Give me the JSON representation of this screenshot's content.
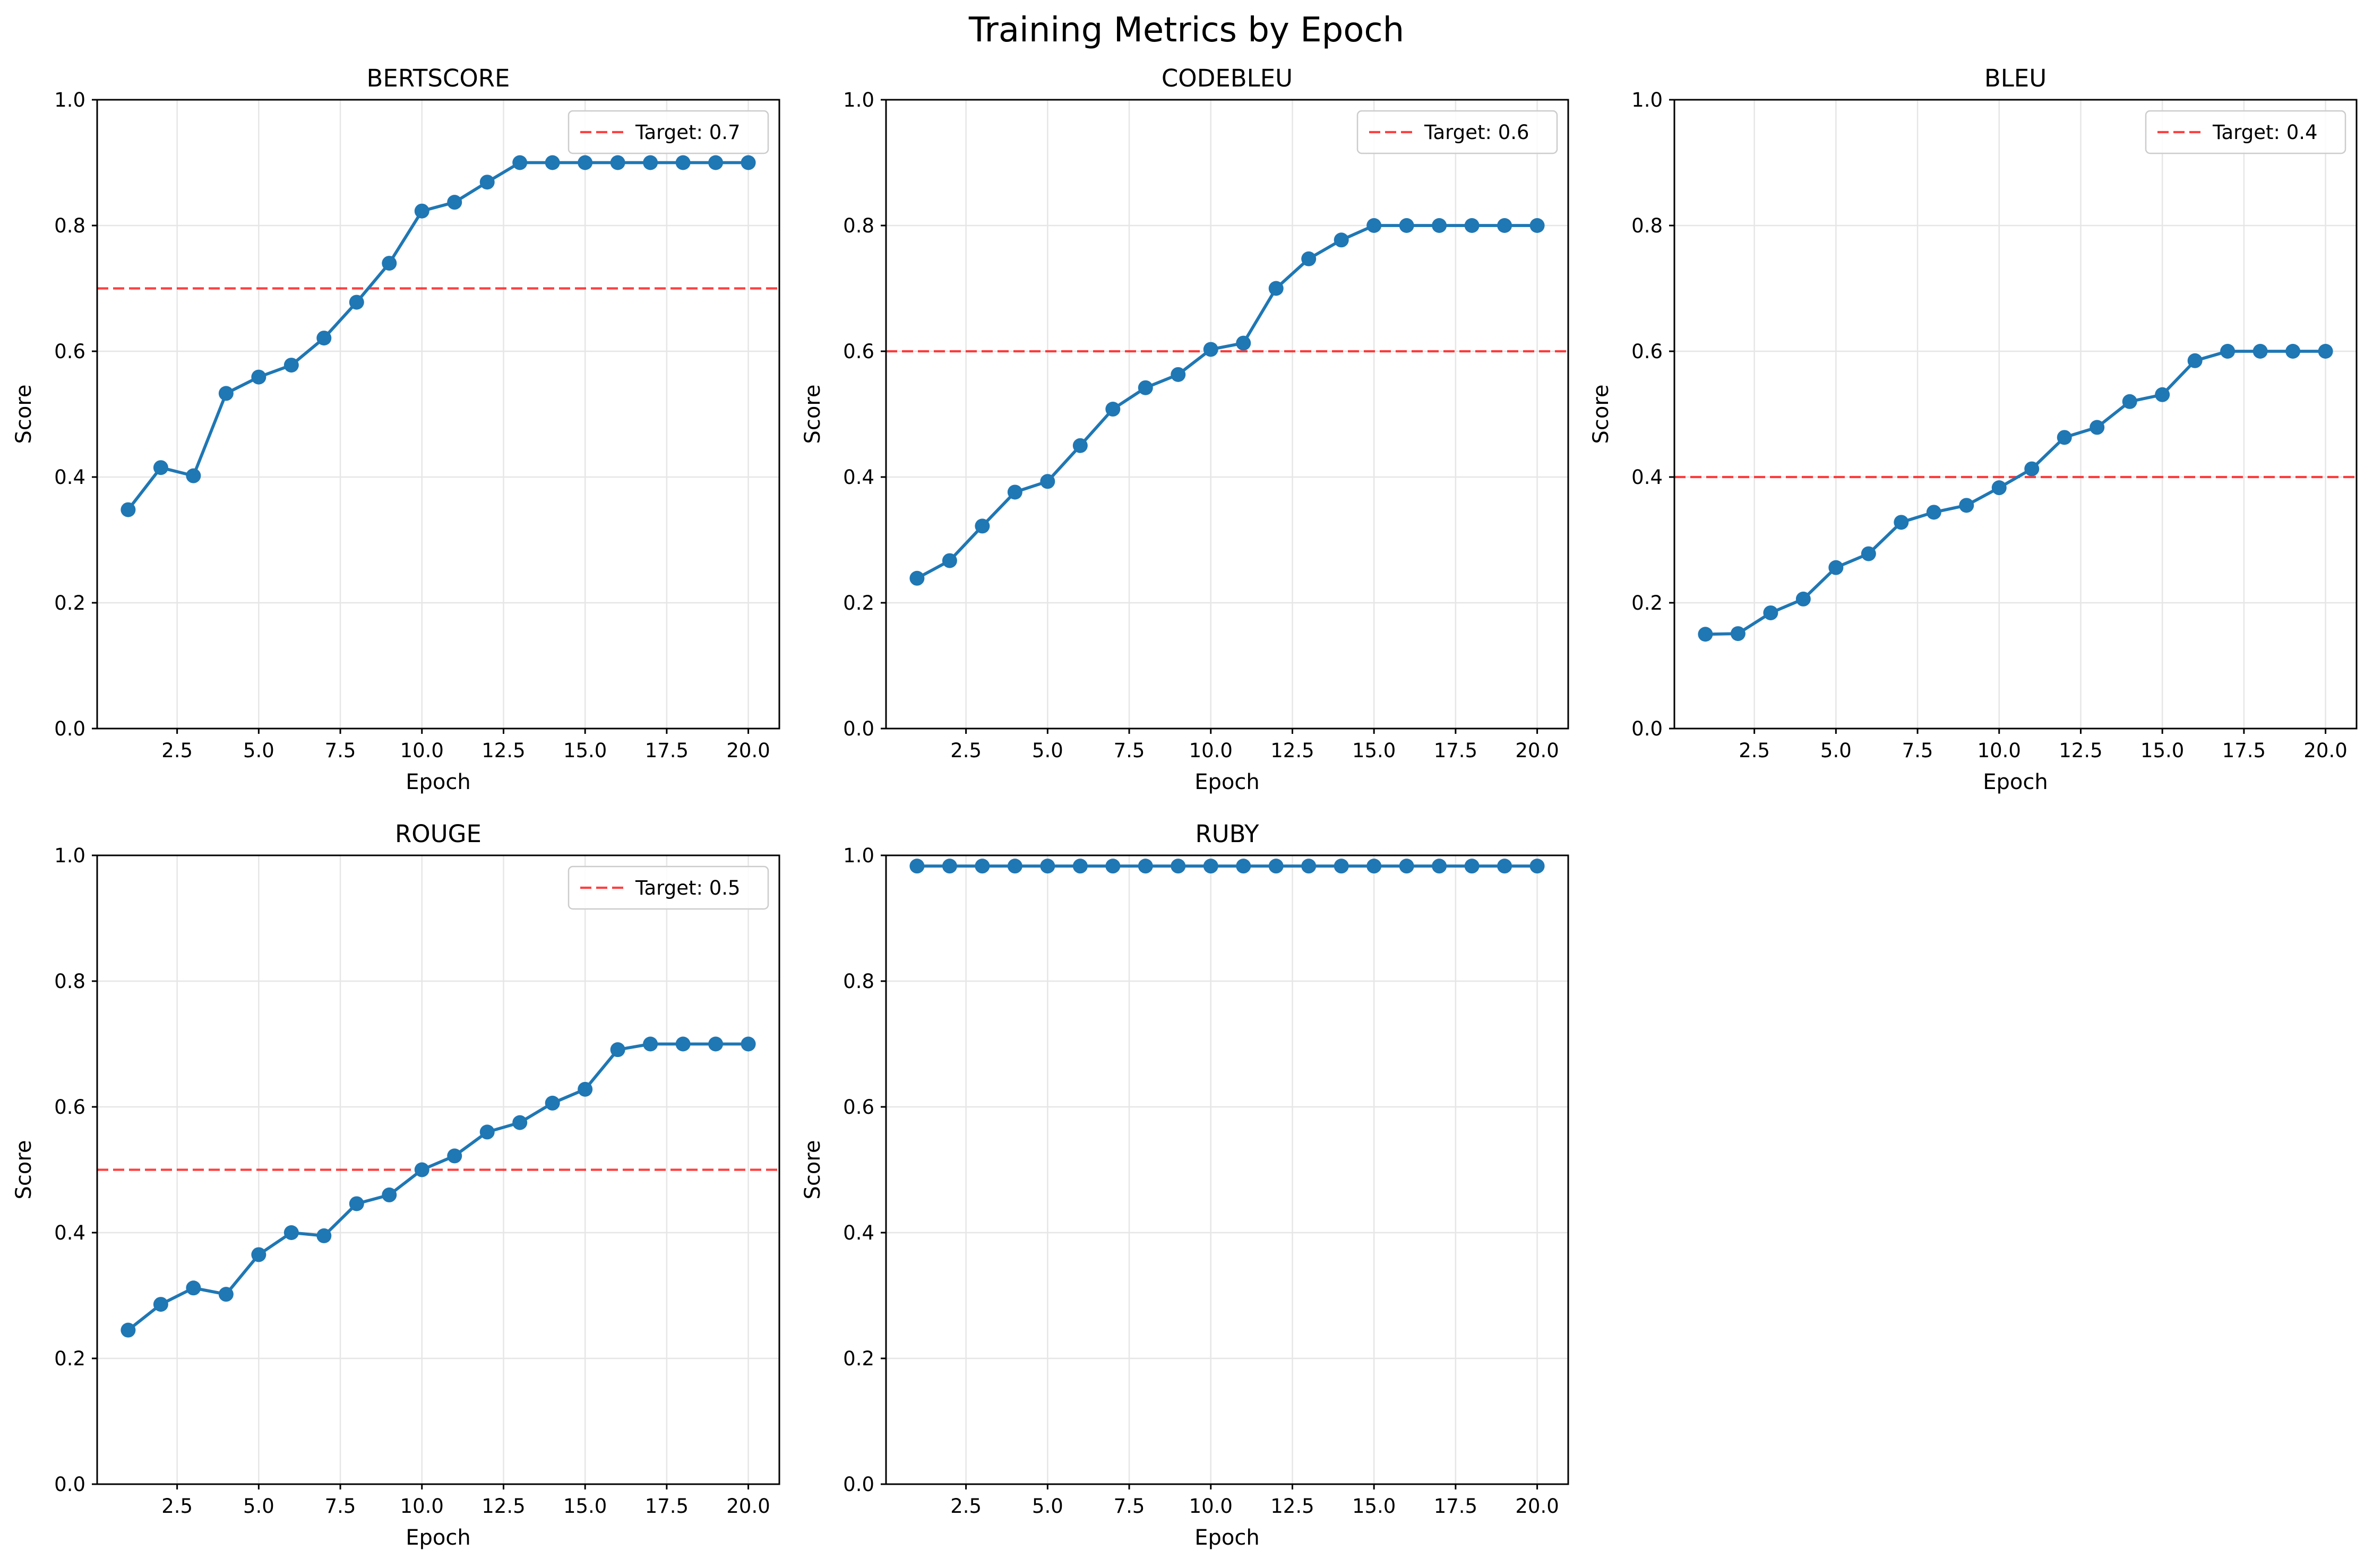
{
  "title": "Training Metrics by Epoch",
  "colors": {
    "line": "#1f77b4",
    "target": "#ff0000",
    "grid": "#e6e6e6",
    "axes": "#000000"
  },
  "chart_data": [
    {
      "type": "line",
      "title": "BERTSCORE",
      "xlabel": "Epoch",
      "ylabel": "Score",
      "xlim": [
        0.05,
        20.95
      ],
      "ylim": [
        0,
        1
      ],
      "xticks": [
        2.5,
        5.0,
        7.5,
        10.0,
        12.5,
        15.0,
        17.5,
        20.0
      ],
      "xtick_labels": [
        "2.5",
        "5.0",
        "7.5",
        "10.0",
        "12.5",
        "15.0",
        "17.5",
        "20.0"
      ],
      "yticks": [
        0,
        0.2,
        0.4,
        0.6,
        0.8,
        1.0
      ],
      "ytick_labels": [
        "0.0",
        "0.2",
        "0.4",
        "0.6",
        "0.8",
        "1.0"
      ],
      "grid": true,
      "x": [
        1,
        2,
        3,
        4,
        5,
        6,
        7,
        8,
        9,
        10,
        11,
        12,
        13,
        14,
        15,
        16,
        17,
        18,
        19,
        20
      ],
      "values": [
        0.348,
        0.415,
        0.402,
        0.533,
        0.559,
        0.578,
        0.621,
        0.678,
        0.74,
        0.823,
        0.837,
        0.869,
        0.9,
        0.9,
        0.9,
        0.9,
        0.9,
        0.9,
        0.9,
        0.9
      ],
      "target": 0.7,
      "legend": "Target: 0.7",
      "legend_position": "top-right"
    },
    {
      "type": "line",
      "title": "CODEBLEU",
      "xlabel": "Epoch",
      "ylabel": "Score",
      "xlim": [
        0.05,
        20.95
      ],
      "ylim": [
        0,
        1
      ],
      "xticks": [
        2.5,
        5.0,
        7.5,
        10.0,
        12.5,
        15.0,
        17.5,
        20.0
      ],
      "xtick_labels": [
        "2.5",
        "5.0",
        "7.5",
        "10.0",
        "12.5",
        "15.0",
        "17.5",
        "20.0"
      ],
      "yticks": [
        0,
        0.2,
        0.4,
        0.6,
        0.8,
        1.0
      ],
      "ytick_labels": [
        "0.0",
        "0.2",
        "0.4",
        "0.6",
        "0.8",
        "1.0"
      ],
      "grid": true,
      "x": [
        1,
        2,
        3,
        4,
        5,
        6,
        7,
        8,
        9,
        10,
        11,
        12,
        13,
        14,
        15,
        16,
        17,
        18,
        19,
        20
      ],
      "values": [
        0.239,
        0.267,
        0.322,
        0.376,
        0.393,
        0.45,
        0.508,
        0.542,
        0.563,
        0.603,
        0.613,
        0.7,
        0.747,
        0.777,
        0.8,
        0.8,
        0.8,
        0.8,
        0.8,
        0.8
      ],
      "target": 0.6,
      "legend": "Target: 0.6",
      "legend_position": "top-right"
    },
    {
      "type": "line",
      "title": "BLEU",
      "xlabel": "Epoch",
      "ylabel": "Score",
      "xlim": [
        0.05,
        20.95
      ],
      "ylim": [
        0,
        1
      ],
      "xticks": [
        2.5,
        5.0,
        7.5,
        10.0,
        12.5,
        15.0,
        17.5,
        20.0
      ],
      "xtick_labels": [
        "2.5",
        "5.0",
        "7.5",
        "10.0",
        "12.5",
        "15.0",
        "17.5",
        "20.0"
      ],
      "yticks": [
        0,
        0.2,
        0.4,
        0.6,
        0.8,
        1.0
      ],
      "ytick_labels": [
        "0.0",
        "0.2",
        "0.4",
        "0.6",
        "0.8",
        "1.0"
      ],
      "grid": true,
      "x": [
        1,
        2,
        3,
        4,
        5,
        6,
        7,
        8,
        9,
        10,
        11,
        12,
        13,
        14,
        15,
        16,
        17,
        18,
        19,
        20
      ],
      "values": [
        0.15,
        0.151,
        0.184,
        0.206,
        0.256,
        0.278,
        0.328,
        0.344,
        0.355,
        0.383,
        0.413,
        0.463,
        0.479,
        0.52,
        0.531,
        0.585,
        0.6,
        0.6,
        0.6,
        0.6
      ],
      "target": 0.4,
      "legend": "Target: 0.4",
      "legend_position": "top-right"
    },
    {
      "type": "line",
      "title": "ROUGE",
      "xlabel": "Epoch",
      "ylabel": "Score",
      "xlim": [
        0.05,
        20.95
      ],
      "ylim": [
        0,
        1
      ],
      "xticks": [
        2.5,
        5.0,
        7.5,
        10.0,
        12.5,
        15.0,
        17.5,
        20.0
      ],
      "xtick_labels": [
        "2.5",
        "5.0",
        "7.5",
        "10.0",
        "12.5",
        "15.0",
        "17.5",
        "20.0"
      ],
      "yticks": [
        0,
        0.2,
        0.4,
        0.6,
        0.8,
        1.0
      ],
      "ytick_labels": [
        "0.0",
        "0.2",
        "0.4",
        "0.6",
        "0.8",
        "1.0"
      ],
      "grid": true,
      "x": [
        1,
        2,
        3,
        4,
        5,
        6,
        7,
        8,
        9,
        10,
        11,
        12,
        13,
        14,
        15,
        16,
        17,
        18,
        19,
        20
      ],
      "values": [
        0.245,
        0.286,
        0.312,
        0.302,
        0.365,
        0.4,
        0.395,
        0.446,
        0.46,
        0.5,
        0.522,
        0.56,
        0.575,
        0.606,
        0.628,
        0.691,
        0.7,
        0.7,
        0.7,
        0.7
      ],
      "target": 0.5,
      "legend": "Target: 0.5",
      "legend_position": "top-right"
    },
    {
      "type": "line",
      "title": "RUBY",
      "xlabel": "Epoch",
      "ylabel": "Score",
      "xlim": [
        0.05,
        20.95
      ],
      "ylim": [
        0,
        1
      ],
      "xticks": [
        2.5,
        5.0,
        7.5,
        10.0,
        12.5,
        15.0,
        17.5,
        20.0
      ],
      "xtick_labels": [
        "2.5",
        "5.0",
        "7.5",
        "10.0",
        "12.5",
        "15.0",
        "17.5",
        "20.0"
      ],
      "yticks": [
        0,
        0.2,
        0.4,
        0.6,
        0.8,
        1.0
      ],
      "ytick_labels": [
        "0.0",
        "0.2",
        "0.4",
        "0.6",
        "0.8",
        "1.0"
      ],
      "grid": true,
      "x": [
        1,
        2,
        3,
        4,
        5,
        6,
        7,
        8,
        9,
        10,
        11,
        12,
        13,
        14,
        15,
        16,
        17,
        18,
        19,
        20
      ],
      "values": [
        0.983,
        0.983,
        0.983,
        0.983,
        0.983,
        0.983,
        0.983,
        0.983,
        0.983,
        0.983,
        0.983,
        0.983,
        0.983,
        0.983,
        0.983,
        0.983,
        0.983,
        0.983,
        0.983,
        0.983
      ],
      "target": null,
      "legend": null,
      "legend_position": null
    }
  ]
}
